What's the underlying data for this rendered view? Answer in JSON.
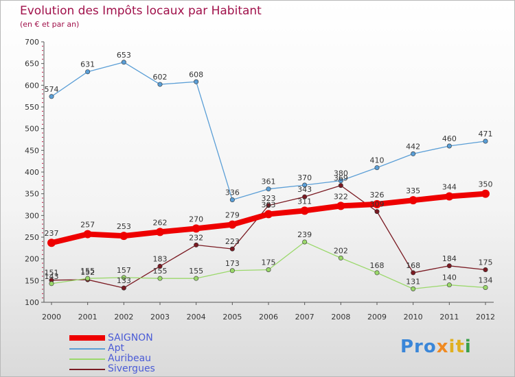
{
  "header": {
    "title": "Evolution des Impôts locaux par Habitant",
    "subtitle": "(en € et par an)"
  },
  "logo": {
    "text": "Proxiti",
    "parts": [
      "Pro",
      "x",
      "it",
      "i"
    ]
  },
  "chart_data": {
    "type": "line",
    "title": "Evolution des Impôts locaux par Habitant",
    "subtitle": "(en € et par an)",
    "xlabel": "",
    "ylabel": "",
    "ylim": [
      100,
      700
    ],
    "yticks": [
      100,
      150,
      200,
      250,
      300,
      350,
      400,
      450,
      500,
      550,
      600,
      650,
      700
    ],
    "grid": false,
    "legend_position": "bottom-left",
    "categories": [
      "2000",
      "2001",
      "2002",
      "2003",
      "2004",
      "2005",
      "2006",
      "2007",
      "2008",
      "2009",
      "2010",
      "2011",
      "2012"
    ],
    "series": [
      {
        "name": "SAIGNON",
        "color": "#ee0000",
        "style": "thick",
        "values": [
          237,
          257,
          253,
          262,
          270,
          279,
          303,
          311,
          322,
          326,
          335,
          344,
          350
        ]
      },
      {
        "name": "Apt",
        "color": "#5a9ed6",
        "style": "thin",
        "values": [
          574,
          631,
          653,
          602,
          608,
          336,
          361,
          370,
          380,
          410,
          442,
          460,
          471
        ]
      },
      {
        "name": "Auribeau",
        "color": "#9ad86a",
        "style": "thin",
        "values": [
          143,
          155,
          157,
          155,
          155,
          173,
          175,
          239,
          202,
          168,
          131,
          140,
          134
        ]
      },
      {
        "name": "Sivergues",
        "color": "#7a1a22",
        "style": "thin",
        "values": [
          151,
          152,
          133,
          183,
          232,
          223,
          323,
          343,
          369,
          309,
          168,
          184,
          175
        ]
      }
    ]
  }
}
